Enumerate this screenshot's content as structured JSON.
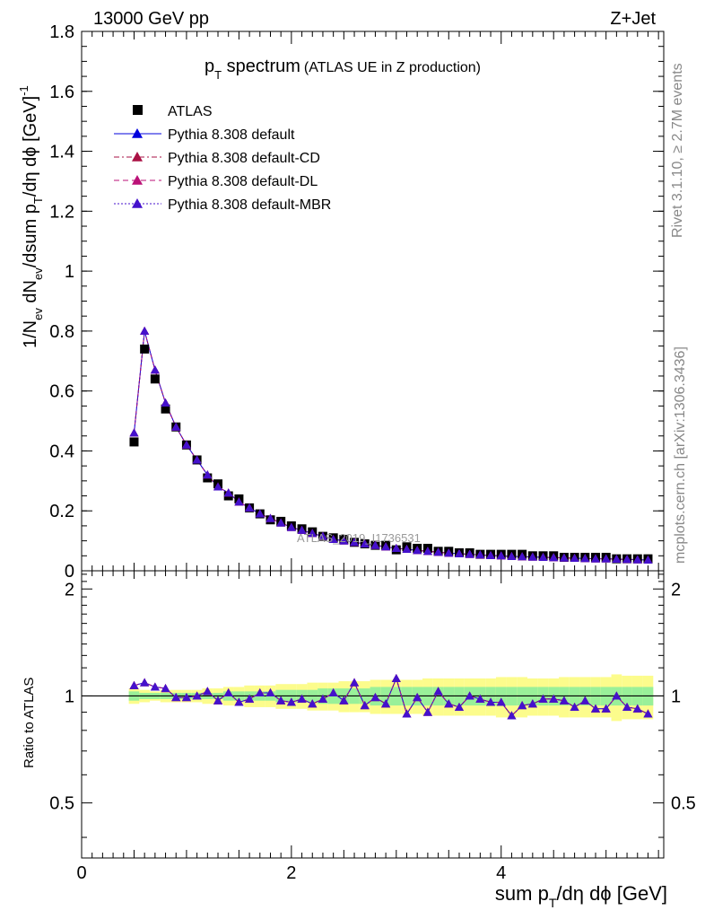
{
  "header": {
    "left": "13000 GeV pp",
    "right": "Z+Jet"
  },
  "title": {
    "main": "p",
    "main_sub": "T",
    "main_rest": " spectrum",
    "paren": "(ATLAS UE in Z production)"
  },
  "side": {
    "rivet": "Rivet 3.1.10, ≥ 2.7M events",
    "mcplots": "mcplots.cern.ch [arXiv:1306.3436]"
  },
  "watermark": "ATLAS_2019_I1736531",
  "axes": {
    "ylabel_top": "1/N_ev dN_ev/dsum p_T/dη dϕ [GeV]^-1",
    "ylabel_ratio": "Ratio to ATLAS",
    "xlabel": "sum p_T/dη dϕ [GeV]"
  },
  "legend": [
    {
      "label": "ATLAS",
      "color": "#000000",
      "marker": "square",
      "line": "none"
    },
    {
      "label": "Pythia 8.308 default",
      "color": "#0000dd",
      "marker": "triangle",
      "line": "solid"
    },
    {
      "label": "Pythia 8.308 default-CD",
      "color": "#aa1144",
      "marker": "triangle",
      "line": "dashdot"
    },
    {
      "label": "Pythia 8.308 default-DL",
      "color": "#bb1177",
      "marker": "triangle",
      "line": "dashed"
    },
    {
      "label": "Pythia 8.308 default-MBR",
      "color": "#4411cc",
      "marker": "triangle",
      "line": "dotted"
    }
  ],
  "chart_data": {
    "type": "scatter",
    "x": [
      0.5,
      0.6,
      0.7,
      0.8,
      0.9,
      1.0,
      1.1,
      1.2,
      1.3,
      1.4,
      1.5,
      1.6,
      1.7,
      1.8,
      1.9,
      2.0,
      2.1,
      2.2,
      2.3,
      2.4,
      2.5,
      2.6,
      2.7,
      2.8,
      2.9,
      3.0,
      3.1,
      3.2,
      3.3,
      3.4,
      3.5,
      3.6,
      3.7,
      3.8,
      3.9,
      4.0,
      4.1,
      4.2,
      4.3,
      4.4,
      4.5,
      4.6,
      4.7,
      4.8,
      4.9,
      5.0,
      5.1,
      5.2,
      5.3,
      5.4
    ],
    "xlim": [
      0,
      5.55
    ],
    "ylim_top": [
      0,
      1.8
    ],
    "ylim_ratio": [
      0.35,
      2.25
    ],
    "yticks_top": [
      "0",
      "0.2",
      "0.4",
      "0.6",
      "0.8",
      "1",
      "1.2",
      "1.4",
      "1.6",
      "1.8"
    ],
    "yticks_top_values": [
      0,
      0.2,
      0.4,
      0.6,
      0.8,
      1,
      1.2,
      1.4,
      1.6,
      1.8
    ],
    "yticks_ratio": [
      "0.5",
      "1",
      "2"
    ],
    "yticks_ratio_values": [
      0.5,
      1,
      2
    ],
    "xticks": [
      "0",
      "2",
      "4"
    ],
    "xticks_values": [
      0,
      2,
      4
    ],
    "data": [
      0.43,
      0.74,
      0.64,
      0.54,
      0.48,
      0.42,
      0.37,
      0.31,
      0.29,
      0.25,
      0.24,
      0.21,
      0.19,
      0.17,
      0.165,
      0.15,
      0.14,
      0.13,
      0.115,
      0.11,
      0.105,
      0.095,
      0.09,
      0.085,
      0.085,
      0.07,
      0.08,
      0.075,
      0.075,
      0.065,
      0.065,
      0.06,
      0.06,
      0.055,
      0.055,
      0.055,
      0.055,
      0.055,
      0.05,
      0.05,
      0.05,
      0.045,
      0.045,
      0.045,
      0.045,
      0.045,
      0.04,
      0.04,
      0.04,
      0.04
    ],
    "mc": [
      0.46,
      0.8,
      0.67,
      0.56,
      0.48,
      0.42,
      0.37,
      0.32,
      0.28,
      0.26,
      0.23,
      0.21,
      0.19,
      0.175,
      0.16,
      0.145,
      0.135,
      0.125,
      0.115,
      0.105,
      0.1,
      0.095,
      0.09,
      0.085,
      0.08,
      0.075,
      0.072,
      0.068,
      0.065,
      0.062,
      0.059,
      0.057,
      0.055,
      0.053,
      0.051,
      0.05,
      0.048,
      0.047,
      0.046,
      0.045,
      0.044,
      0.043,
      0.042,
      0.041,
      0.04,
      0.04,
      0.039,
      0.038,
      0.037,
      0.036
    ],
    "ratio": [
      1.07,
      1.09,
      1.06,
      1.05,
      0.99,
      0.99,
      1.0,
      1.03,
      0.97,
      1.02,
      0.96,
      0.98,
      1.02,
      1.02,
      0.97,
      0.96,
      0.98,
      0.95,
      0.98,
      1.02,
      0.97,
      1.09,
      0.94,
      0.99,
      0.95,
      1.12,
      0.89,
      0.99,
      0.9,
      1.03,
      0.95,
      0.93,
      1.0,
      0.98,
      0.96,
      0.96,
      0.88,
      0.94,
      0.95,
      0.98,
      0.98,
      0.97,
      0.93,
      0.97,
      0.92,
      0.92,
      1.0,
      0.93,
      0.92,
      0.89
    ],
    "band_inner": [
      0.03,
      0.02,
      0.02,
      0.02,
      0.02,
      0.02,
      0.02,
      0.02,
      0.02,
      0.03,
      0.03,
      0.03,
      0.03,
      0.03,
      0.04,
      0.04,
      0.04,
      0.04,
      0.05,
      0.05,
      0.05,
      0.05,
      0.05,
      0.06,
      0.06,
      0.06,
      0.06,
      0.06,
      0.06,
      0.06,
      0.06,
      0.06,
      0.06,
      0.06,
      0.06,
      0.06,
      0.06,
      0.06,
      0.06,
      0.06,
      0.06,
      0.06,
      0.06,
      0.06,
      0.06,
      0.06,
      0.06,
      0.06,
      0.06,
      0.06
    ],
    "band_outer": [
      0.05,
      0.04,
      0.03,
      0.04,
      0.04,
      0.04,
      0.04,
      0.05,
      0.05,
      0.06,
      0.06,
      0.07,
      0.07,
      0.07,
      0.08,
      0.08,
      0.08,
      0.09,
      0.09,
      0.09,
      0.1,
      0.1,
      0.1,
      0.11,
      0.11,
      0.11,
      0.11,
      0.11,
      0.12,
      0.12,
      0.12,
      0.12,
      0.12,
      0.12,
      0.12,
      0.13,
      0.13,
      0.13,
      0.12,
      0.12,
      0.12,
      0.13,
      0.13,
      0.13,
      0.13,
      0.13,
      0.15,
      0.14,
      0.14,
      0.14
    ]
  }
}
